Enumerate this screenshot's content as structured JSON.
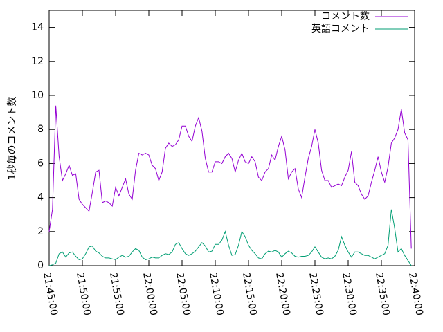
{
  "chart_data": {
    "type": "line",
    "y_label": "1秒毎のコメント数",
    "x": [
      "21:45:00",
      "21:45:30",
      "21:46:00",
      "21:46:30",
      "21:47:00",
      "21:47:30",
      "21:48:00",
      "21:48:30",
      "21:49:00",
      "21:49:30",
      "21:50:00",
      "21:50:30",
      "21:51:00",
      "21:51:30",
      "21:52:00",
      "21:52:30",
      "21:53:00",
      "21:53:30",
      "21:54:00",
      "21:54:30",
      "21:55:00",
      "21:55:30",
      "21:56:00",
      "21:56:30",
      "21:57:00",
      "21:57:30",
      "21:58:00",
      "21:58:30",
      "21:59:00",
      "21:59:30",
      "22:00:00",
      "22:00:30",
      "22:01:00",
      "22:01:30",
      "22:02:00",
      "22:02:30",
      "22:03:00",
      "22:03:30",
      "22:04:00",
      "22:04:30",
      "22:05:00",
      "22:05:30",
      "22:06:00",
      "22:06:30",
      "22:07:00",
      "22:07:30",
      "22:08:00",
      "22:08:30",
      "22:09:00",
      "22:09:30",
      "22:10:00",
      "22:10:30",
      "22:11:00",
      "22:11:30",
      "22:12:00",
      "22:12:30",
      "22:13:00",
      "22:13:30",
      "22:14:00",
      "22:14:30",
      "22:15:00",
      "22:15:30",
      "22:16:00",
      "22:16:30",
      "22:17:00",
      "22:17:30",
      "22:18:00",
      "22:18:30",
      "22:19:00",
      "22:19:30",
      "22:20:00",
      "22:20:30",
      "22:21:00",
      "22:21:30",
      "22:22:00",
      "22:22:30",
      "22:23:00",
      "22:23:30",
      "22:24:00",
      "22:24:30",
      "22:25:00",
      "22:25:30",
      "22:26:00",
      "22:26:30",
      "22:27:00",
      "22:27:30",
      "22:28:00",
      "22:28:30",
      "22:29:00",
      "22:29:30",
      "22:30:00",
      "22:30:30",
      "22:31:00",
      "22:31:30",
      "22:32:00",
      "22:32:30",
      "22:33:00",
      "22:33:30",
      "22:34:00",
      "22:34:30",
      "22:35:00",
      "22:35:30",
      "22:36:00",
      "22:36:30",
      "22:37:00",
      "22:37:30",
      "22:38:00",
      "22:38:30",
      "22:39:00",
      "22:39:30"
    ],
    "series": [
      {
        "name": "コメント数",
        "color": "#9400d3",
        "values": [
          2.0,
          3.3,
          9.4,
          6.4,
          5.0,
          5.4,
          5.9,
          5.3,
          5.4,
          3.9,
          3.6,
          3.4,
          3.2,
          4.3,
          5.5,
          5.6,
          3.7,
          3.8,
          3.7,
          3.5,
          4.6,
          4.1,
          4.6,
          5.1,
          4.2,
          3.9,
          5.6,
          6.6,
          6.5,
          6.6,
          6.5,
          5.9,
          5.7,
          5.0,
          5.5,
          6.9,
          7.2,
          7.0,
          7.1,
          7.4,
          8.2,
          8.2,
          7.6,
          7.3,
          8.2,
          8.7,
          7.9,
          6.3,
          5.5,
          5.5,
          6.1,
          6.1,
          6.0,
          6.4,
          6.6,
          6.3,
          5.5,
          6.2,
          6.6,
          6.1,
          6.0,
          6.4,
          6.1,
          5.2,
          5.0,
          5.5,
          5.7,
          6.5,
          6.2,
          7.0,
          7.6,
          6.8,
          5.1,
          5.5,
          5.7,
          4.5,
          4.0,
          5.2,
          6.3,
          7.0,
          8.0,
          7.2,
          5.6,
          5.0,
          5.0,
          4.6,
          4.7,
          4.8,
          4.7,
          5.2,
          5.6,
          6.7,
          4.9,
          4.7,
          4.2,
          3.9,
          4.1,
          4.9,
          5.6,
          6.4,
          5.5,
          4.9,
          5.8,
          7.2,
          7.5,
          8.0,
          9.2,
          7.8,
          7.4,
          1.0
        ]
      },
      {
        "name": "英語コメント",
        "color": "#009e73",
        "values": [
          0.0,
          0.05,
          0.15,
          0.7,
          0.8,
          0.5,
          0.75,
          0.8,
          0.55,
          0.35,
          0.4,
          0.7,
          1.1,
          1.15,
          0.85,
          0.75,
          0.55,
          0.45,
          0.45,
          0.4,
          0.35,
          0.5,
          0.6,
          0.5,
          0.55,
          0.8,
          1.0,
          0.9,
          0.5,
          0.35,
          0.4,
          0.5,
          0.45,
          0.45,
          0.6,
          0.7,
          0.65,
          0.8,
          1.25,
          1.35,
          1.0,
          0.7,
          0.6,
          0.7,
          0.85,
          1.1,
          1.35,
          1.15,
          0.8,
          0.85,
          1.25,
          1.25,
          1.5,
          2.0,
          1.2,
          0.6,
          0.65,
          1.2,
          2.0,
          1.7,
          1.2,
          0.9,
          0.7,
          0.45,
          0.4,
          0.7,
          0.85,
          0.8,
          0.9,
          0.8,
          0.5,
          0.7,
          0.85,
          0.75,
          0.55,
          0.5,
          0.55,
          0.55,
          0.6,
          0.8,
          1.1,
          0.8,
          0.5,
          0.4,
          0.45,
          0.4,
          0.55,
          0.9,
          1.7,
          1.2,
          0.8,
          0.5,
          0.8,
          0.8,
          0.7,
          0.6,
          0.6,
          0.5,
          0.4,
          0.5,
          0.6,
          0.7,
          1.2,
          3.3,
          2.2,
          0.8,
          1.0,
          0.6,
          0.3,
          0.0
        ]
      }
    ],
    "xlim": [
      "21:45:00",
      "22:40:00"
    ],
    "xticks": [
      "21:45:00",
      "21:50:00",
      "21:55:00",
      "22:00:00",
      "22:05:00",
      "22:10:00",
      "22:15:00",
      "22:20:00",
      "22:25:00",
      "22:30:00",
      "22:35:00",
      "22:40:00"
    ],
    "ylim": [
      0,
      15
    ],
    "yticks": [
      0,
      2,
      4,
      6,
      8,
      10,
      12,
      14
    ],
    "legend": "top-right"
  }
}
